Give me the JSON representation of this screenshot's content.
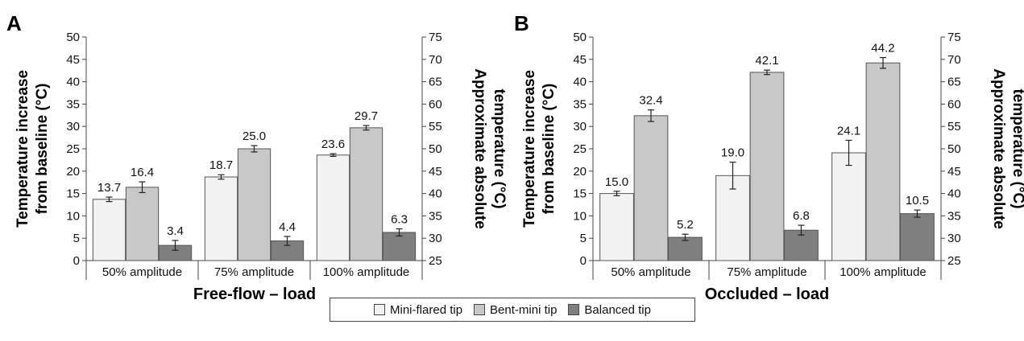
{
  "colors": {
    "mini_flared": "#f2f2f2",
    "bent_mini": "#c8c8c8",
    "balanced": "#7f7f7f",
    "bar_stroke": "#555555",
    "axis": "#444444"
  },
  "legend": {
    "items": [
      {
        "label": "Mini-flared tip",
        "color": "#f2f2f2"
      },
      {
        "label": "Bent-mini tip",
        "color": "#c8c8c8"
      },
      {
        "label": "Balanced tip",
        "color": "#7f7f7f"
      }
    ],
    "placement": "bottom-center"
  },
  "chart_data": [
    {
      "type": "bar",
      "panel_label": "A",
      "xlabel": "Free-flow – load",
      "ylabel": "Temperature increase from baseline (°C)",
      "ylabel_lines": [
        "Temperature increase",
        "from baseline (°C)"
      ],
      "y2label": "Approximate absolute temperature (°C)",
      "y2label_lines": [
        "Approximate absolute",
        "temperature (°C)"
      ],
      "ylim": [
        0,
        50
      ],
      "y2lim": [
        25,
        75
      ],
      "yticks": [
        0,
        5,
        10,
        15,
        20,
        25,
        30,
        35,
        40,
        45,
        50
      ],
      "y2ticks": [
        25,
        30,
        35,
        40,
        45,
        50,
        55,
        60,
        65,
        70,
        75
      ],
      "categories": [
        "50% amplitude",
        "75% amplitude",
        "100% amplitude"
      ],
      "grid": false,
      "series": [
        {
          "name": "Mini-flared tip",
          "values": [
            13.7,
            18.7,
            23.6
          ],
          "errors": [
            0.5,
            0.5,
            0.3
          ],
          "labels": [
            "13.7",
            "18.7",
            "23.6"
          ]
        },
        {
          "name": "Bent-mini tip",
          "values": [
            16.4,
            25.0,
            29.7
          ],
          "errors": [
            1.2,
            0.7,
            0.5
          ],
          "labels": [
            "16.4",
            "25.0",
            "29.7"
          ]
        },
        {
          "name": "Balanced tip",
          "values": [
            3.4,
            4.4,
            6.3
          ],
          "errors": [
            1.1,
            1.0,
            0.8
          ],
          "labels": [
            "3.4",
            "4.4",
            "6.3"
          ]
        }
      ]
    },
    {
      "type": "bar",
      "panel_label": "B",
      "xlabel": "Occluded – load",
      "ylabel": "Temperature increase from baseline (°C)",
      "ylabel_lines": [
        "Temperature increase",
        "from baseline (°C)"
      ],
      "y2label": "Approximate absolute temperature (°C)",
      "y2label_lines": [
        "Approximate absolute",
        "temperature (°C)"
      ],
      "ylim": [
        0,
        50
      ],
      "y2lim": [
        25,
        75
      ],
      "yticks": [
        0,
        5,
        10,
        15,
        20,
        25,
        30,
        35,
        40,
        45,
        50
      ],
      "y2ticks": [
        25,
        30,
        35,
        40,
        45,
        50,
        55,
        60,
        65,
        70,
        75
      ],
      "categories": [
        "50% amplitude",
        "75% amplitude",
        "100% amplitude"
      ],
      "grid": false,
      "series": [
        {
          "name": "Mini-flared tip",
          "values": [
            15.0,
            19.0,
            24.1
          ],
          "errors": [
            0.5,
            3.0,
            2.8
          ],
          "labels": [
            "15.0",
            "19.0",
            "24.1"
          ]
        },
        {
          "name": "Bent-mini tip",
          "values": [
            32.4,
            42.1,
            44.2
          ],
          "errors": [
            1.3,
            0.5,
            1.2
          ],
          "labels": [
            "32.4",
            "42.1",
            "44.2"
          ]
        },
        {
          "name": "Balanced tip",
          "values": [
            5.2,
            6.8,
            10.5
          ],
          "errors": [
            0.7,
            1.1,
            0.8
          ],
          "labels": [
            "5.2",
            "6.8",
            "10.5"
          ]
        }
      ]
    }
  ]
}
